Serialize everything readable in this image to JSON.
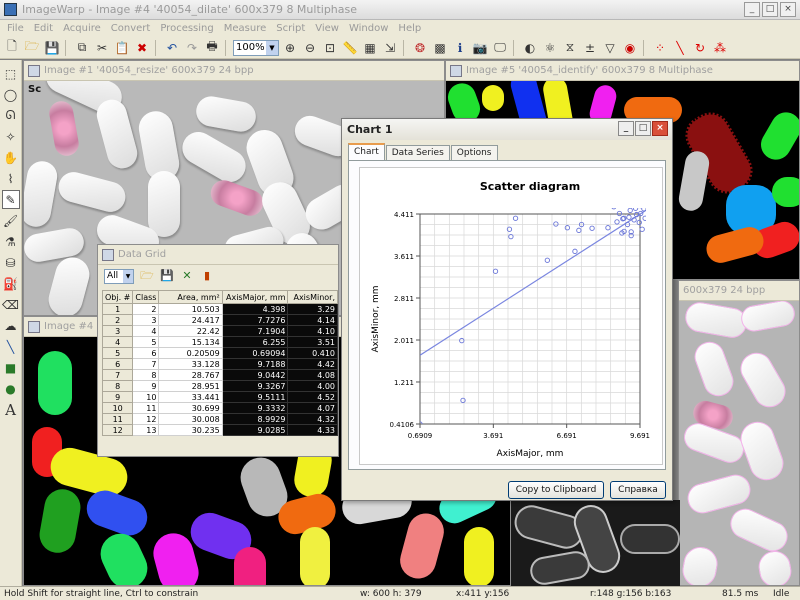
{
  "app": {
    "title": "ImageWarp - Image #4 '40054_dilate' 600x379 8 Multiphase",
    "window_controls": [
      "_",
      "□",
      "×"
    ]
  },
  "menu": [
    "File",
    "Edit",
    "Acquire",
    "Convert",
    "Processing",
    "Measure",
    "Script",
    "View",
    "Window",
    "Help"
  ],
  "toolbar": {
    "zoom_value": "100%"
  },
  "windows": {
    "image1": {
      "title": "Image #1 '40054_resize' 600x379 24 bpp",
      "label": "Sc"
    },
    "image5": {
      "title": "Image #5 '40054_identify' 600x379 8 Multiphase"
    },
    "image_right": {
      "title": "600x379 24 bpp"
    },
    "image4": {
      "title": "Image #4 '40"
    }
  },
  "data_grid": {
    "title": "Data Grid",
    "filter_value": "All",
    "columns": [
      "Obj. #",
      "Class",
      "Area, mm²",
      "AxisMajor, mm",
      "AxisMinor,"
    ],
    "rows": [
      [
        "1",
        "2",
        "10.503",
        "4.398",
        "3.29"
      ],
      [
        "2",
        "3",
        "24.417",
        "7.7276",
        "4.14"
      ],
      [
        "3",
        "4",
        "22.42",
        "7.1904",
        "4.10"
      ],
      [
        "4",
        "5",
        "15.134",
        "6.255",
        "3.51"
      ],
      [
        "5",
        "6",
        "0.20509",
        "0.69094",
        "0.410"
      ],
      [
        "6",
        "7",
        "33.128",
        "9.7188",
        "4.42"
      ],
      [
        "7",
        "8",
        "28.767",
        "9.0442",
        "4.08"
      ],
      [
        "8",
        "9",
        "28.951",
        "9.3267",
        "4.00"
      ],
      [
        "9",
        "10",
        "33.441",
        "9.5111",
        "4.52"
      ],
      [
        "10",
        "11",
        "30.699",
        "9.3332",
        "4.07"
      ],
      [
        "11",
        "12",
        "30.008",
        "8.9929",
        "4.32"
      ],
      [
        "12",
        "13",
        "30.235",
        "9.0285",
        "4.33"
      ]
    ]
  },
  "chart_window": {
    "title": "Chart 1",
    "tabs": [
      "Chart",
      "Data Series",
      "Options"
    ],
    "buttons": {
      "copy": "Copy to Clipboard",
      "help": "Справка"
    }
  },
  "chart_data": {
    "type": "scatter",
    "title": "Scatter diagram",
    "xlabel": "AxisMajor, mm",
    "ylabel": "AxisMinor, mm",
    "xlim": [
      0.6909,
      9.691
    ],
    "ylim": [
      0.4106,
      4.411
    ],
    "xticks": [
      "0.6909",
      "3.691",
      "6.691",
      "9.691"
    ],
    "yticks": [
      "0.4106",
      "1.211",
      "2.011",
      "2.811",
      "3.611",
      "4.411"
    ],
    "trendline": {
      "x": [
        0.6909,
        10.0
      ],
      "y": [
        1.72,
        4.5
      ]
    },
    "points": [
      {
        "x": 0.69,
        "y": 0.41
      },
      {
        "x": 2.45,
        "y": 0.86
      },
      {
        "x": 2.4,
        "y": 2.0
      },
      {
        "x": 3.78,
        "y": 3.32
      },
      {
        "x": 4.35,
        "y": 4.12
      },
      {
        "x": 4.41,
        "y": 3.98
      },
      {
        "x": 4.6,
        "y": 4.33
      },
      {
        "x": 5.9,
        "y": 3.53
      },
      {
        "x": 6.25,
        "y": 4.22
      },
      {
        "x": 6.72,
        "y": 4.15
      },
      {
        "x": 7.03,
        "y": 3.7
      },
      {
        "x": 7.19,
        "y": 4.1
      },
      {
        "x": 7.3,
        "y": 4.21
      },
      {
        "x": 7.73,
        "y": 4.14
      },
      {
        "x": 8.38,
        "y": 4.15
      },
      {
        "x": 8.62,
        "y": 4.55
      },
      {
        "x": 8.75,
        "y": 4.26
      },
      {
        "x": 8.85,
        "y": 4.42
      },
      {
        "x": 8.95,
        "y": 4.05
      },
      {
        "x": 8.99,
        "y": 4.32
      },
      {
        "x": 9.03,
        "y": 4.33
      },
      {
        "x": 9.04,
        "y": 4.08
      },
      {
        "x": 9.1,
        "y": 4.6
      },
      {
        "x": 9.18,
        "y": 4.21
      },
      {
        "x": 9.24,
        "y": 4.35
      },
      {
        "x": 9.29,
        "y": 4.48
      },
      {
        "x": 9.33,
        "y": 4.07
      },
      {
        "x": 9.33,
        "y": 4.0
      },
      {
        "x": 9.4,
        "y": 4.62
      },
      {
        "x": 9.45,
        "y": 4.3
      },
      {
        "x": 9.51,
        "y": 4.52
      },
      {
        "x": 9.55,
        "y": 4.4
      },
      {
        "x": 9.62,
        "y": 4.68
      },
      {
        "x": 9.66,
        "y": 4.25
      },
      {
        "x": 9.72,
        "y": 4.42
      },
      {
        "x": 9.72,
        "y": 4.57
      },
      {
        "x": 9.78,
        "y": 4.12
      },
      {
        "x": 9.85,
        "y": 4.51
      },
      {
        "x": 9.9,
        "y": 4.33
      },
      {
        "x": 10.05,
        "y": 3.9
      }
    ]
  },
  "status": {
    "hint": "Hold Shift for straight line, Ctrl to constrain",
    "size": "w: 600  h: 379",
    "coords": "x:411  y:156",
    "rgb": "r:148  g:156  b:163",
    "time": "81.5 ms",
    "state": "Idle"
  }
}
